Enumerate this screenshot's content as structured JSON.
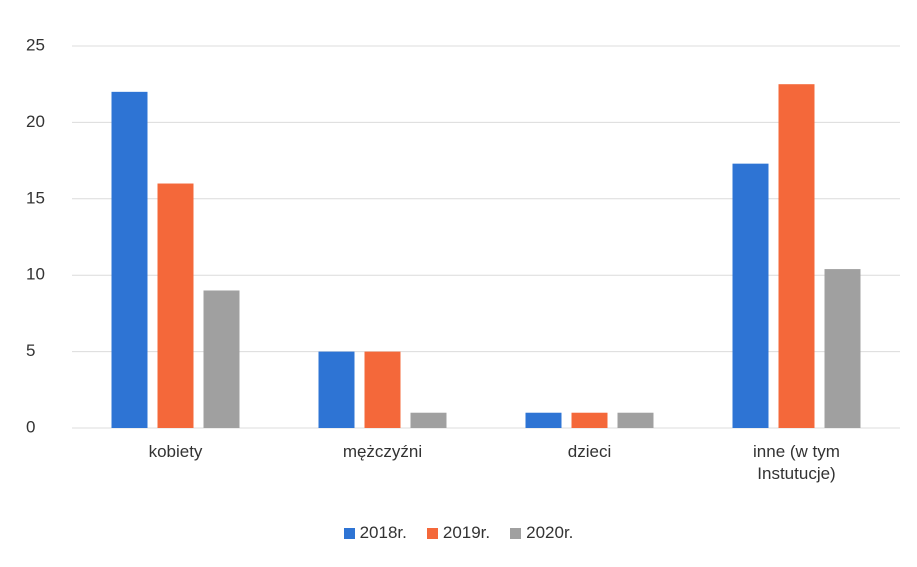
{
  "chart_data": {
    "type": "bar",
    "categories": [
      "kobiety",
      "mężczyźni",
      "dzieci",
      "inne (w tym Instutucje)"
    ],
    "series": [
      {
        "name": "2018r.",
        "color": "#2e74d4",
        "values": [
          22,
          5,
          1,
          17.3
        ]
      },
      {
        "name": "2019r.",
        "color": "#f4683a",
        "values": [
          16,
          5,
          1,
          22.5
        ]
      },
      {
        "name": "2020r.",
        "color": "#a0a0a0",
        "values": [
          9,
          1,
          1,
          10.4
        ]
      }
    ],
    "ylim": [
      0,
      25
    ],
    "yticks": [
      0,
      5,
      10,
      15,
      20,
      25
    ],
    "grid": true,
    "legend": "bottom"
  }
}
